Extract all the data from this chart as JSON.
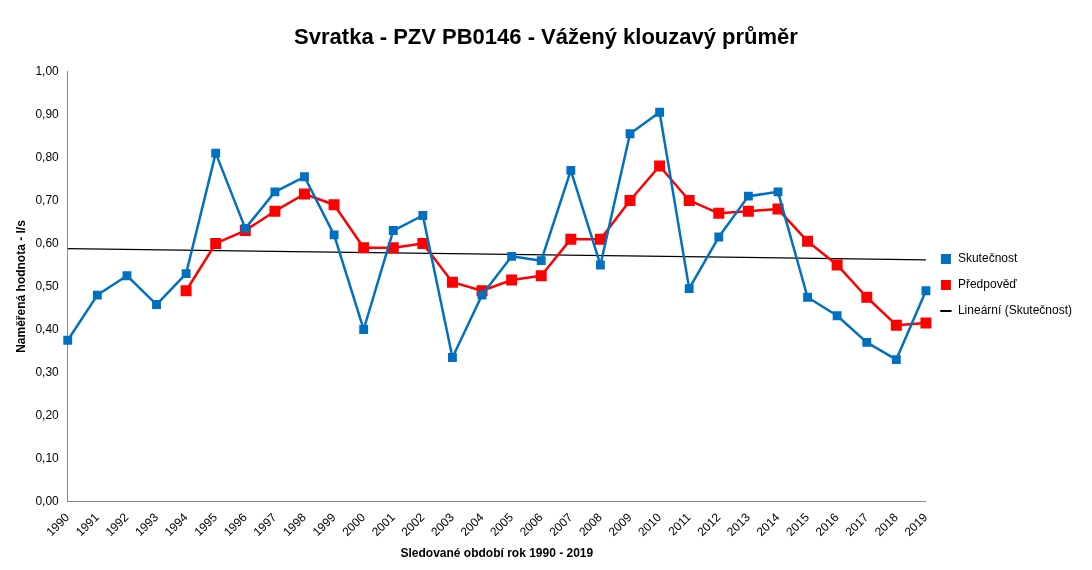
{
  "chart_data": {
    "type": "line",
    "title": "Svratka - PZV PB0146 - Vážený klouzavý průměr",
    "xlabel": "Sledované období rok 1990 - 2019",
    "ylabel": "Naměřená hodnota - l/s",
    "categories": [
      "1990",
      "1991",
      "1992",
      "1993",
      "1994",
      "1995",
      "1996",
      "1997",
      "1998",
      "1999",
      "2000",
      "2001",
      "2002",
      "2003",
      "2004",
      "2005",
      "2006",
      "2007",
      "2008",
      "2009",
      "2010",
      "2011",
      "2012",
      "2013",
      "2014",
      "2015",
      "2016",
      "2017",
      "2018",
      "2019"
    ],
    "series": [
      {
        "name": "Skutečnost",
        "color": "#0070c0",
        "values": [
          0.375,
          0.48,
          0.525,
          0.458,
          0.53,
          0.81,
          0.635,
          0.72,
          0.755,
          0.62,
          0.4,
          0.63,
          0.665,
          0.335,
          0.48,
          0.57,
          0.56,
          0.77,
          0.55,
          0.855,
          0.905,
          0.495,
          0.615,
          0.71,
          0.72,
          0.475,
          0.432,
          0.37,
          0.33,
          0.49
        ]
      },
      {
        "name": "Předpověď",
        "color": "#ff0000",
        "values": [
          null,
          null,
          null,
          null,
          0.49,
          0.6,
          0.63,
          0.675,
          0.715,
          0.69,
          0.59,
          0.59,
          0.6,
          0.51,
          0.49,
          0.515,
          0.525,
          0.61,
          0.61,
          0.7,
          0.78,
          0.7,
          0.67,
          0.675,
          0.68,
          0.605,
          0.55,
          0.475,
          0.41,
          0.415
        ]
      },
      {
        "name": "Lineární (Skutečnost)",
        "color": "#000000",
        "type": "line",
        "marker": "none",
        "values": [
          0.588,
          null,
          null,
          null,
          null,
          null,
          null,
          null,
          null,
          null,
          null,
          null,
          null,
          null,
          null,
          null,
          null,
          null,
          null,
          null,
          null,
          null,
          null,
          null,
          null,
          null,
          null,
          null,
          null,
          0.562
        ]
      }
    ],
    "ylim": [
      0,
      1
    ],
    "yticks": [
      {
        "value": 0,
        "label": "0,00"
      },
      {
        "value": 0.1,
        "label": "0,10"
      },
      {
        "value": 0.2,
        "label": "0,20"
      },
      {
        "value": 0.3,
        "label": "0,30"
      },
      {
        "value": 0.4,
        "label": "0,40"
      },
      {
        "value": 0.5,
        "label": "0,50"
      },
      {
        "value": 0.6,
        "label": "0,60"
      },
      {
        "value": 0.7,
        "label": "0,70"
      },
      {
        "value": 0.8,
        "label": "0,80"
      },
      {
        "value": 0.9,
        "label": "0,90"
      },
      {
        "value": 1,
        "label": "1,00"
      }
    ],
    "grid": false,
    "legend": "right",
    "marker": "square",
    "line_style": "solid"
  }
}
